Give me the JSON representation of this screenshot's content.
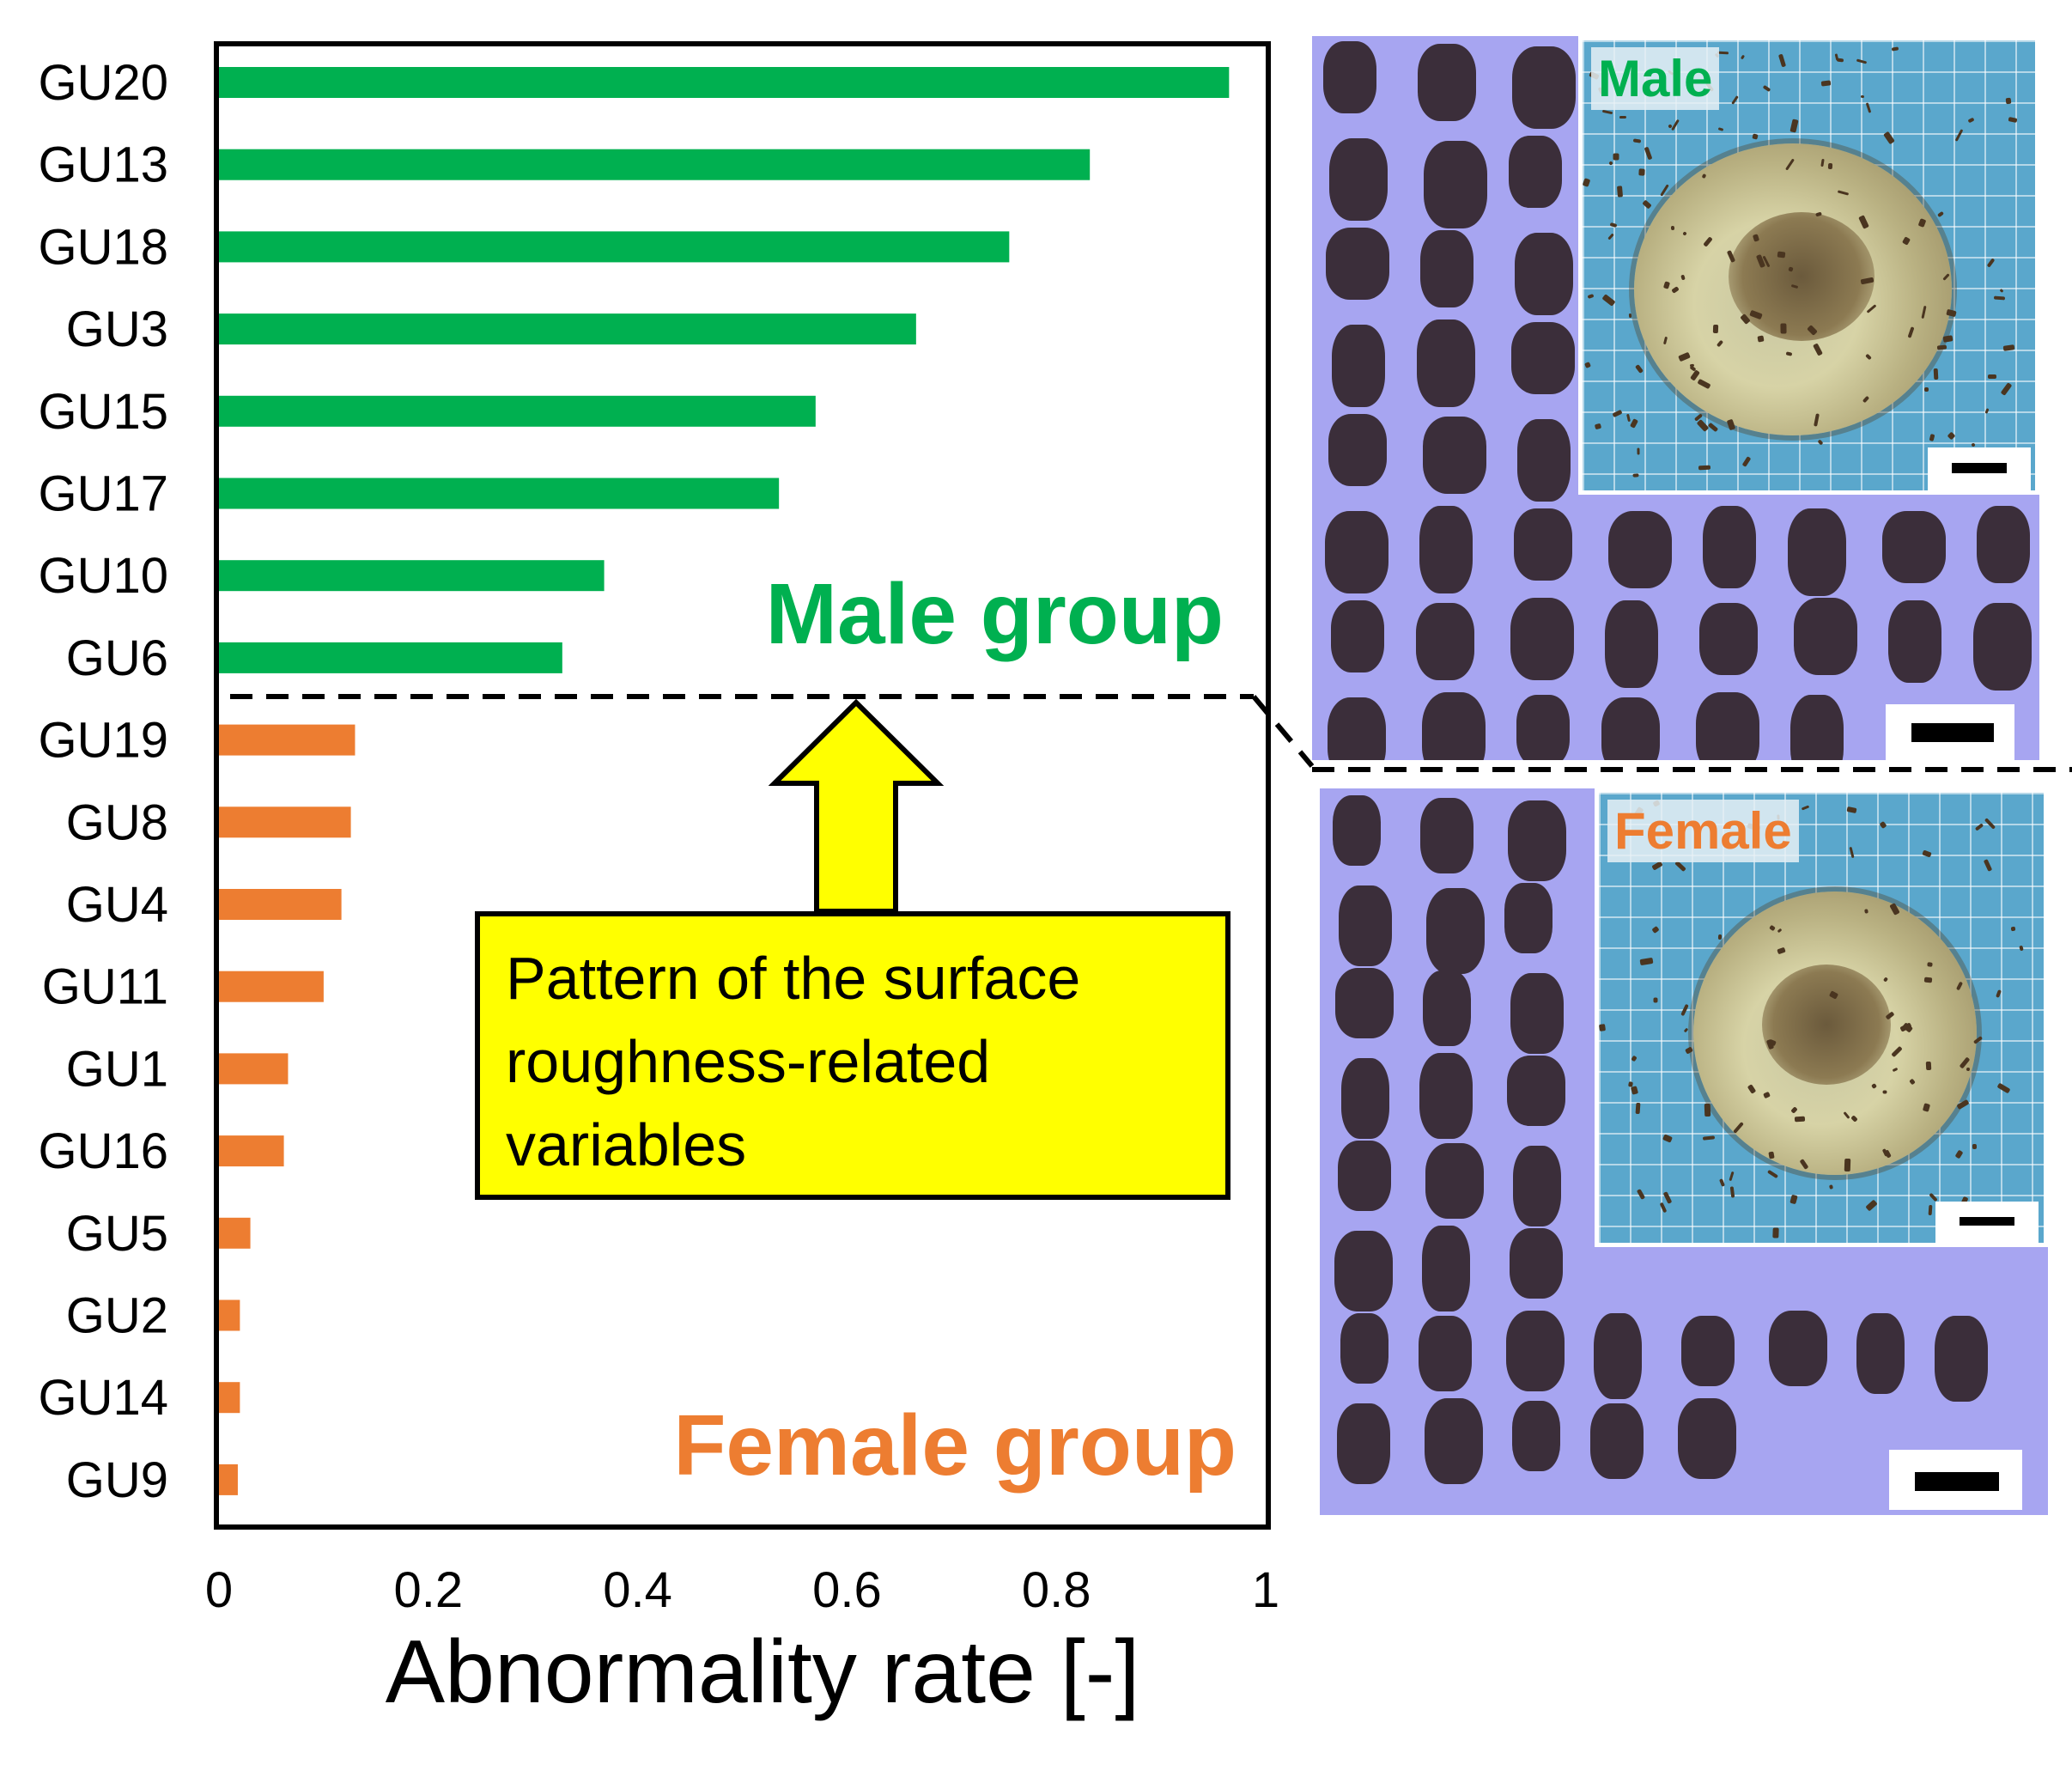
{
  "chart_data": {
    "type": "bar",
    "orientation": "horizontal",
    "xlabel": "Abnormality rate [-]",
    "xlim": [
      0,
      1
    ],
    "xticks": [
      0,
      0.2,
      0.4,
      0.6,
      0.8,
      1
    ],
    "xtick_labels": [
      "0",
      "0.2",
      "0.4",
      "0.6",
      "0.8",
      "1"
    ],
    "categories": [
      "GU20",
      "GU13",
      "GU18",
      "GU3",
      "GU15",
      "GU17",
      "GU10",
      "GU6",
      "GU19",
      "GU8",
      "GU4",
      "GU11",
      "GU1",
      "GU16",
      "GU5",
      "GU2",
      "GU14",
      "GU9"
    ],
    "values": [
      0.965,
      0.832,
      0.755,
      0.666,
      0.57,
      0.535,
      0.368,
      0.328,
      0.13,
      0.126,
      0.117,
      0.1,
      0.066,
      0.062,
      0.03,
      0.02,
      0.02,
      0.018
    ],
    "groups": [
      "male",
      "male",
      "male",
      "male",
      "male",
      "male",
      "male",
      "male",
      "female",
      "female",
      "female",
      "female",
      "female",
      "female",
      "female",
      "female",
      "female",
      "female"
    ],
    "group_colors": {
      "male": "#00b050",
      "female": "#ed7d31"
    },
    "annotations": {
      "male_group": "Male group",
      "female_group": "Female group",
      "callout_lines": [
        "Pattern of the surface",
        "roughness-related",
        "variables"
      ]
    },
    "grid": false
  },
  "photos": {
    "male_label": "Male",
    "female_label": "Female",
    "background_color": "#a7a5f1",
    "pellet_color": "#3b2e3a"
  },
  "colors": {
    "arrow_fill": "#ffff00",
    "callout_fill": "#ffff00"
  }
}
